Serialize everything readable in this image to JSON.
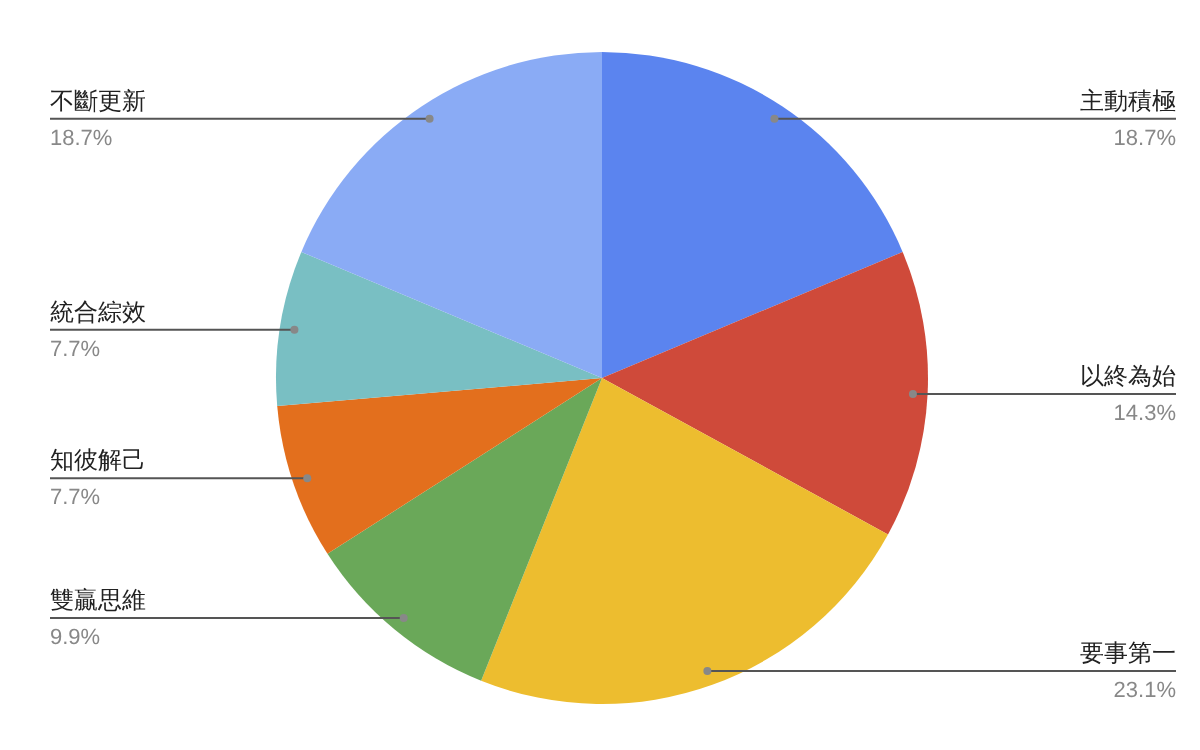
{
  "chart_data": {
    "type": "pie",
    "categories": [
      "主動積極",
      "以終為始",
      "要事第一",
      "雙贏思維",
      "知彼解己",
      "統合綜效",
      "不斷更新"
    ],
    "values": [
      18.7,
      14.3,
      23.1,
      9.9,
      7.7,
      7.7,
      18.7
    ],
    "colors": [
      "#5b84ef",
      "#cf4a3a",
      "#edbd2f",
      "#6aa859",
      "#e36f1d",
      "#79bfc3",
      "#8aabf5"
    ],
    "value_labels": [
      "18.7%",
      "14.3%",
      "23.1%",
      "9.9%",
      "7.7%",
      "7.7%",
      "18.7%"
    ]
  }
}
